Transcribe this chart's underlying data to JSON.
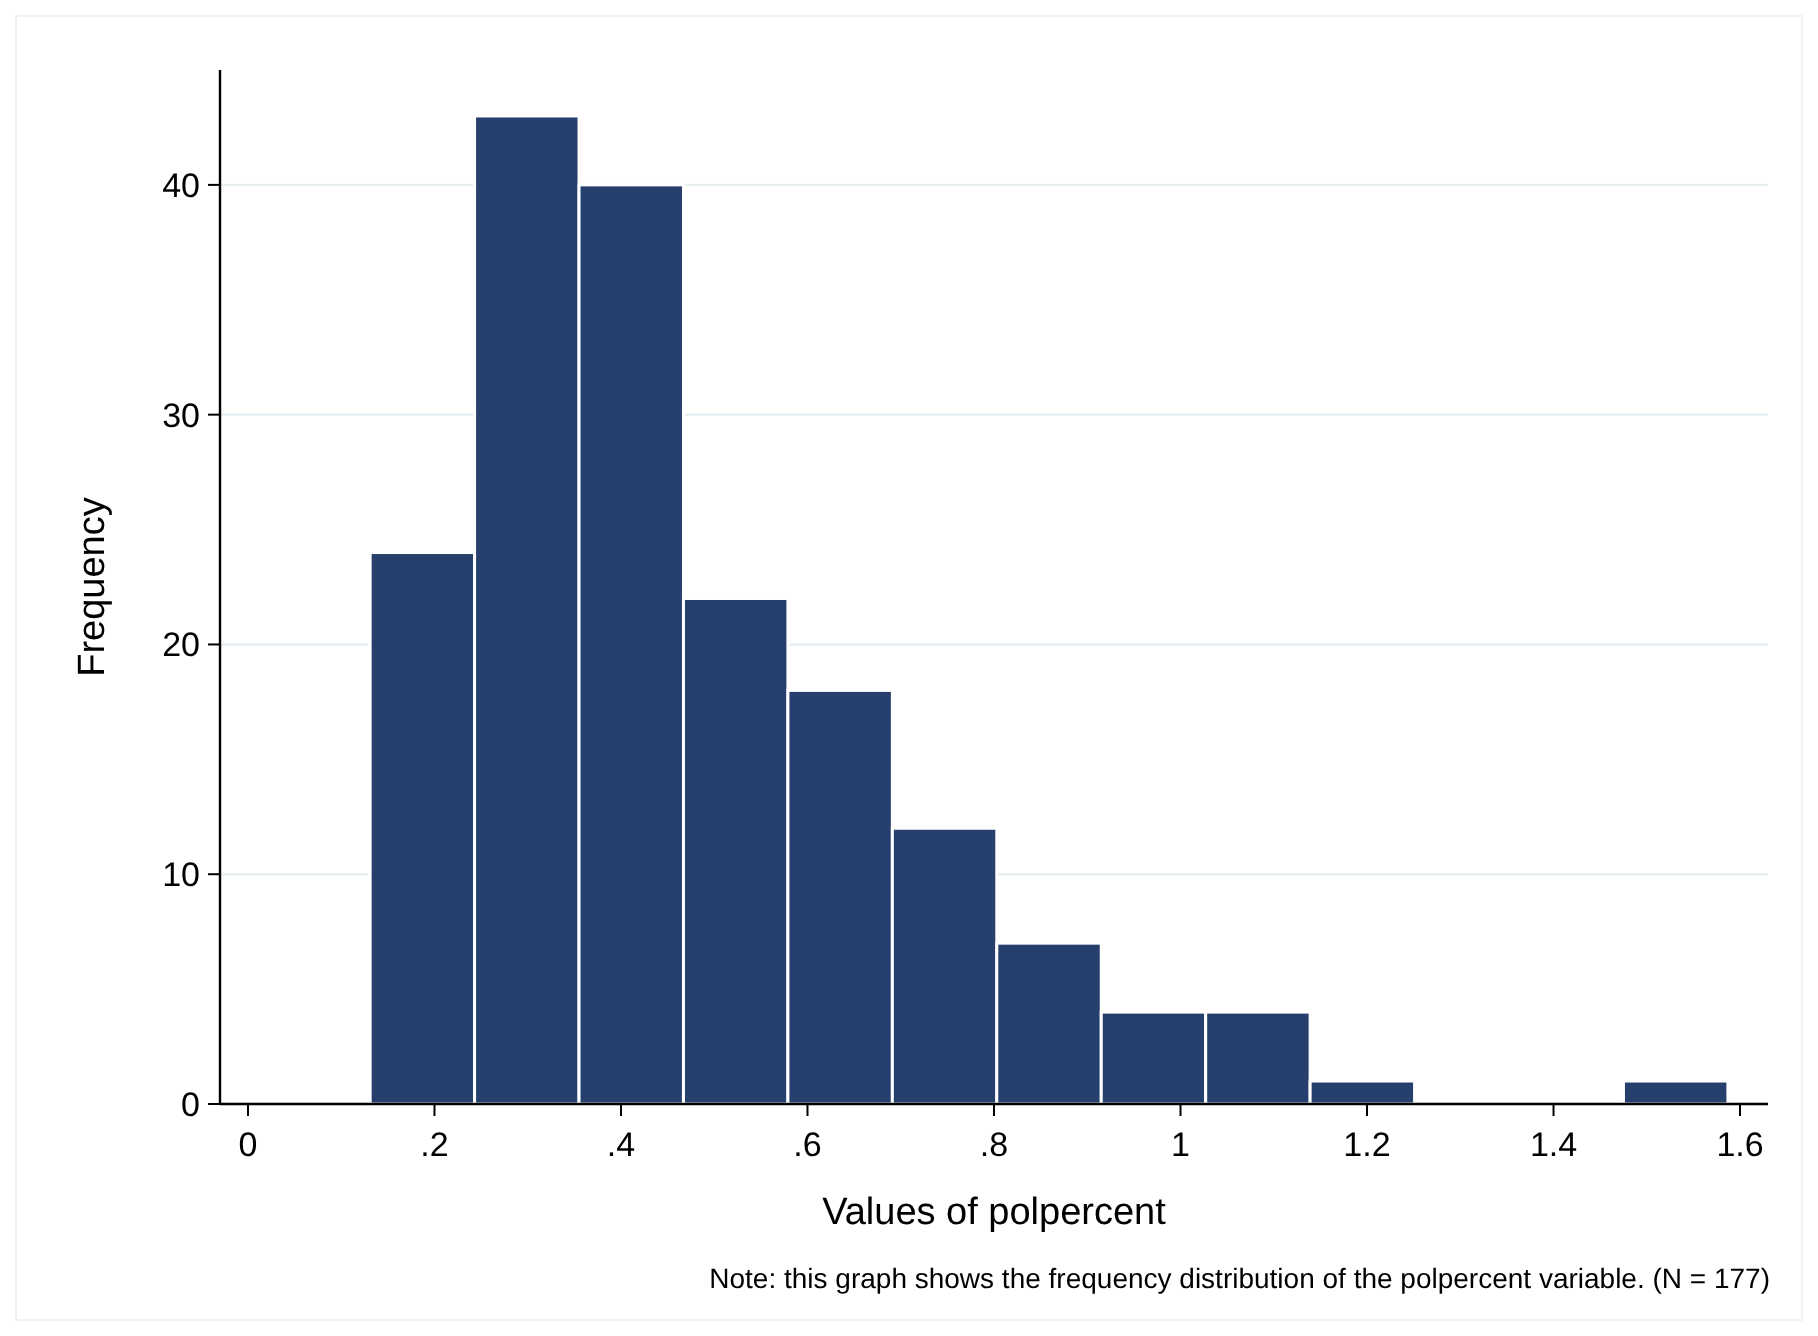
{
  "chart_data": {
    "type": "histogram",
    "bins": [
      0.131,
      0.243,
      0.355,
      0.467,
      0.579,
      0.691,
      0.803,
      0.915,
      1.027,
      1.139,
      1.251,
      1.363,
      1.475,
      1.587
    ],
    "values": [
      24,
      43,
      40,
      22,
      18,
      12,
      7,
      4,
      4,
      1,
      0,
      0,
      1
    ],
    "color": "#273f6d",
    "xlabel": "Values of polpercent",
    "ylabel": "Frequency",
    "annotations": [
      "Note: this graph shows the frequency distribution of the polpercent variable. (N = 177)"
    ],
    "xlim": [
      -0.03,
      1.63
    ],
    "xticks": [
      0,
      {
        "value": 0.2,
        "label": ".2"
      },
      {
        "value": 0.4,
        "label": ".4"
      },
      {
        "value": 0.6,
        "label": ".6"
      },
      {
        "value": 0.8,
        "label": ".8"
      },
      1,
      1.2,
      1.4,
      1.6
    ],
    "ylim": [
      0,
      45
    ],
    "yticks": [
      0,
      10,
      20,
      30,
      40
    ],
    "grid": "y"
  }
}
